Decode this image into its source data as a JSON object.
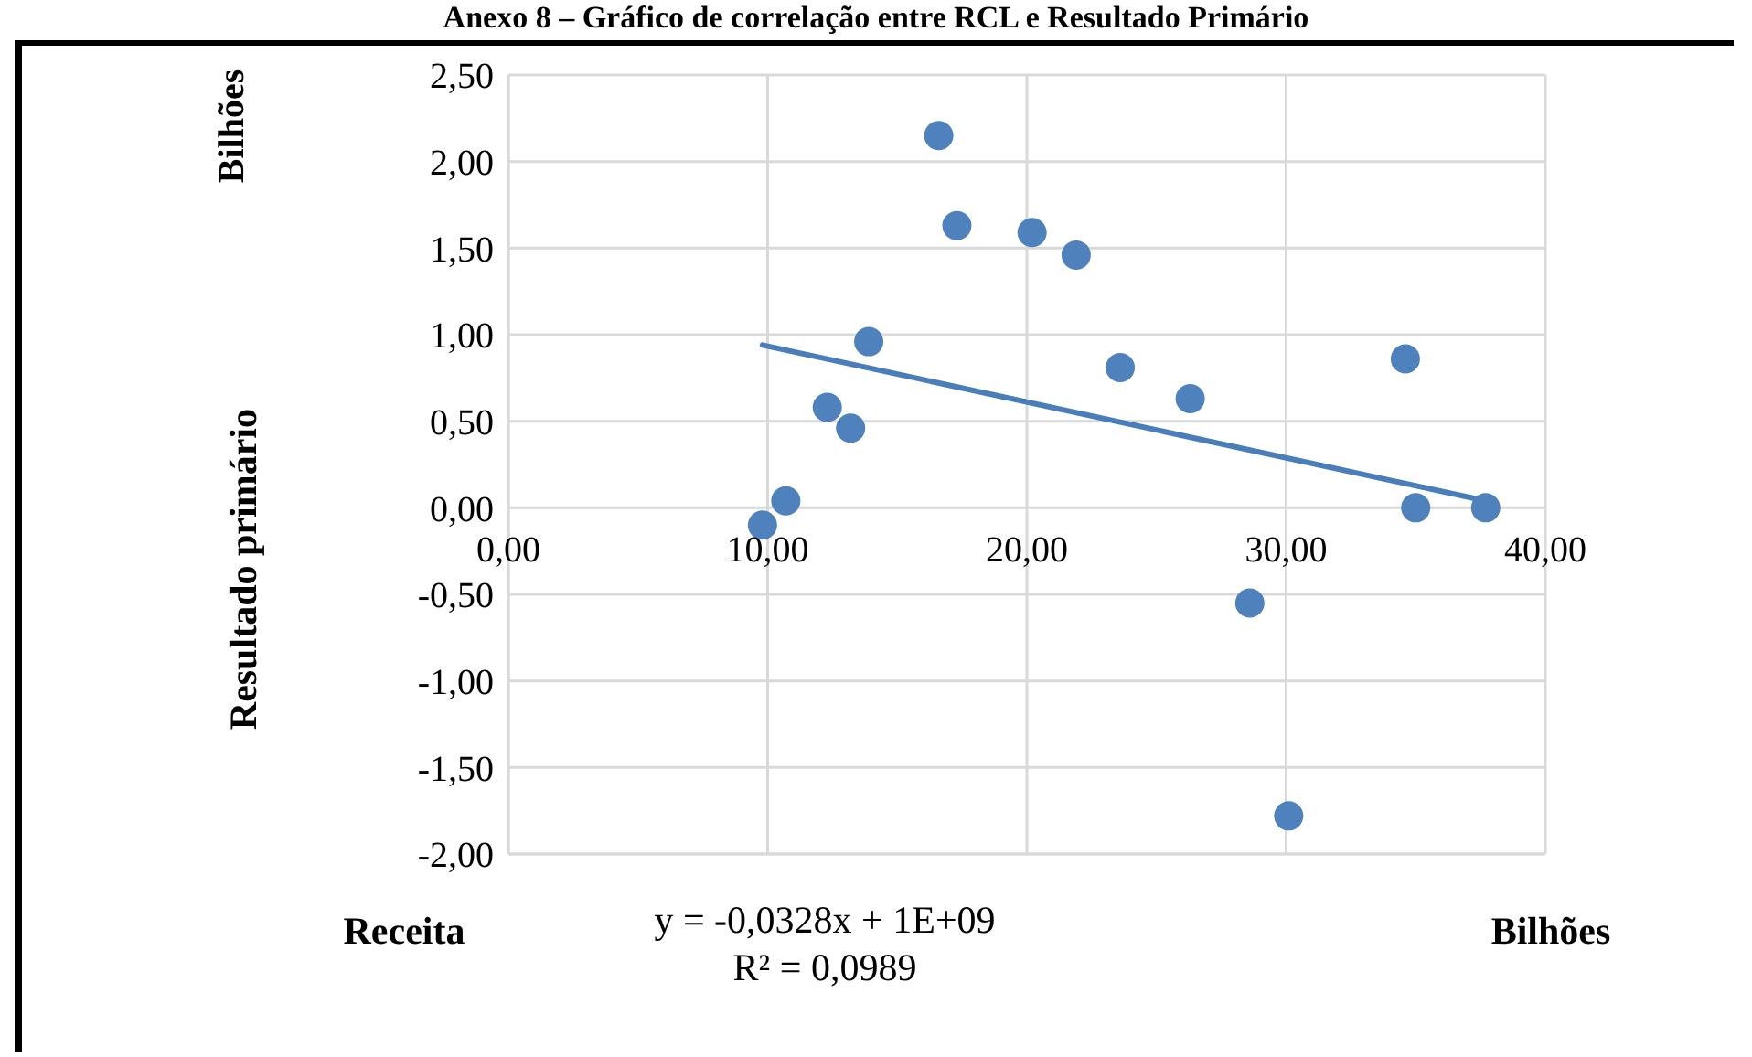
{
  "chart_data": {
    "type": "scatter",
    "title": "Anexo 8 – Gráfico de correlação entre RCL e Resultado Primário",
    "xlabel": "Receita",
    "ylabel": "Resultado primário",
    "annotations": [
      "Bilhões",
      "Bilhões",
      "y = -0,0328x + 1E+09",
      "R² = 0,0989"
    ],
    "series": [
      {
        "color": "#4f81bd",
        "marker": "circle",
        "x": [
          9.8,
          10.7,
          12.3,
          13.2,
          13.9,
          16.6,
          17.3,
          20.2,
          21.9,
          23.6,
          26.3,
          28.6,
          30.1,
          34.6,
          35.0,
          37.7
        ],
        "values": [
          -0.1,
          0.04,
          0.58,
          0.46,
          0.96,
          2.15,
          1.63,
          1.59,
          1.46,
          0.81,
          0.63,
          -0.55,
          -1.78,
          0.86,
          0.0,
          0.0
        ]
      },
      {
        "type": "line",
        "marker": "none",
        "color": "#4a7ebb",
        "x": [
          9.8,
          37.7
        ],
        "values": [
          0.94,
          0.04
        ]
      }
    ],
    "xlim": [
      0,
      40
    ],
    "xticks": [
      {
        "value": 0,
        "label": "0,00"
      },
      {
        "value": 10,
        "label": "10,00"
      },
      {
        "value": 20,
        "label": "20,00"
      },
      {
        "value": 30,
        "label": "30,00"
      },
      {
        "value": 40,
        "label": "40,00"
      }
    ],
    "ylim": [
      -2,
      2.5
    ],
    "yticks": [
      {
        "value": -2,
        "label": "-2,00"
      },
      {
        "value": -1.5,
        "label": "-1,50"
      },
      {
        "value": -1,
        "label": "-1,00"
      },
      {
        "value": -0.5,
        "label": "-0,50"
      },
      {
        "value": 0,
        "label": "0,00"
      },
      {
        "value": 0.5,
        "label": "0,50"
      },
      {
        "value": 1,
        "label": "1,00"
      },
      {
        "value": 1.5,
        "label": "1,50"
      },
      {
        "value": 2,
        "label": "2,00"
      },
      {
        "value": 2.5,
        "label": "2,50"
      }
    ],
    "grid": true,
    "legend": false,
    "line_style": "solid"
  }
}
